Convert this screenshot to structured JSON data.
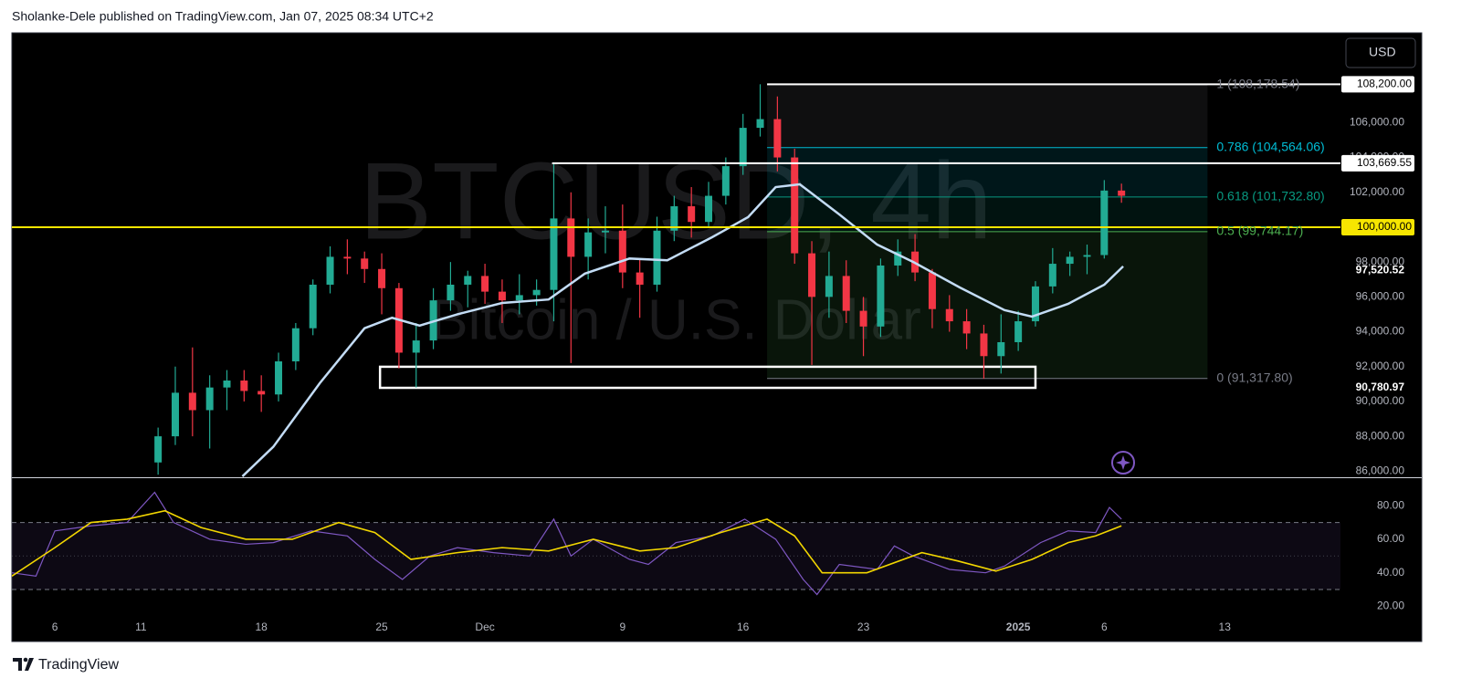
{
  "header": {
    "text": "Sholanke-Dele published on TradingView.com, Jan 07, 2025 08:34 UTC+2"
  },
  "footer": {
    "brand": "TradingView"
  },
  "currency_button": "USD",
  "chart_data": [
    {
      "type": "candlestick",
      "watermark_title": "BTCUSD, 4h",
      "watermark_subtitle": "Bitcoin / U.S. Dollar",
      "up_color": "#22ab94",
      "down_color": "#f23645",
      "ylim": [
        85650,
        111150
      ],
      "yticks": [
        {
          "value": 86000,
          "label": "86,000.00"
        },
        {
          "value": 88000,
          "label": "88,000.00"
        },
        {
          "value": 90000,
          "label": "90,000.00"
        },
        {
          "value": 92000,
          "label": "92,000.00"
        },
        {
          "value": 94000,
          "label": "94,000.00"
        },
        {
          "value": 96000,
          "label": "96,000.00"
        },
        {
          "value": 98000,
          "label": "98,000.00"
        },
        {
          "value": 100000,
          "label": "100,000.00"
        },
        {
          "value": 102000,
          "label": "102,000.00"
        },
        {
          "value": 104000,
          "label": "104,000.00"
        },
        {
          "value": 106000,
          "label": "106,000.00"
        }
      ],
      "x": [
        11,
        12,
        13,
        14,
        15,
        16,
        17,
        18,
        19,
        20,
        21,
        22,
        23,
        24,
        25,
        26,
        27,
        28,
        29,
        30,
        31,
        32,
        33,
        34,
        35,
        36,
        37,
        38,
        39,
        40,
        41,
        42,
        43,
        44,
        45,
        46,
        47,
        48,
        49,
        50,
        51,
        52,
        53,
        54,
        55,
        56,
        57,
        58,
        59,
        60,
        61,
        62,
        63,
        64,
        65,
        66,
        67
      ],
      "open": [
        86500,
        88000,
        90500,
        89500,
        90800,
        91200,
        90600,
        90400,
        92300,
        94200,
        96700,
        98300,
        98200,
        97600,
        96500,
        92800,
        93500,
        95800,
        96700,
        97200,
        96300,
        95800,
        96100,
        96400,
        100500,
        98300,
        99700,
        99800,
        97400,
        96700,
        99800,
        101200,
        100300,
        101800,
        103500,
        105700,
        106200,
        104000,
        98500,
        96000,
        97200,
        95200,
        94300,
        97800,
        98600,
        97400,
        95300,
        94600,
        93900,
        92600,
        93400,
        94600,
        96600,
        97900,
        98300,
        98400,
        102100
      ],
      "high": [
        88500,
        92000,
        93100,
        91500,
        91800,
        91800,
        91500,
        92800,
        94500,
        97000,
        98900,
        99300,
        98600,
        98500,
        96800,
        94500,
        96500,
        98000,
        97500,
        97900,
        97000,
        97300,
        97000,
        103700,
        102000,
        100500,
        101200,
        101300,
        98200,
        100600,
        101800,
        102300,
        102600,
        104000,
        106500,
        108200,
        107500,
        104500,
        99200,
        98600,
        98100,
        96000,
        98200,
        99300,
        99600,
        97600,
        96100,
        95300,
        94400,
        95000,
        95200,
        96900,
        98800,
        98600,
        99000,
        102700,
        102500
      ],
      "low": [
        85800,
        87500,
        88000,
        87300,
        89500,
        90000,
        89400,
        90000,
        91800,
        93800,
        96200,
        97300,
        96800,
        95000,
        91900,
        90800,
        93000,
        95200,
        95400,
        95600,
        94500,
        95000,
        95500,
        94600,
        92200,
        97000,
        98500,
        96500,
        94800,
        96300,
        99200,
        99400,
        100000,
        101300,
        103000,
        105200,
        103200,
        97900,
        92100,
        94800,
        94500,
        92600,
        93700,
        97200,
        96900,
        94200,
        94000,
        93000,
        91300,
        91600,
        92900,
        94300,
        96200,
        97200,
        97300,
        98200,
        101400
      ],
      "close": [
        88000,
        90500,
        89500,
        90800,
        91200,
        90600,
        90400,
        92300,
        94200,
        96700,
        98300,
        98200,
        97600,
        96500,
        92800,
        93500,
        95800,
        96700,
        97200,
        96300,
        95800,
        96100,
        96400,
        100500,
        98300,
        99700,
        99800,
        97400,
        96700,
        99800,
        101200,
        100300,
        101800,
        103500,
        105700,
        106200,
        104000,
        98500,
        96000,
        97200,
        95200,
        94300,
        97800,
        98600,
        97400,
        95300,
        94600,
        93900,
        92600,
        93400,
        94600,
        96600,
        97900,
        98300,
        98400,
        102100,
        101800
      ],
      "ma": {
        "color": "#c3dcf5",
        "x": [
          15.9,
          17.7,
          20.4,
          23.0,
          24.6,
          26.2,
          28.4,
          31.0,
          33.7,
          35.8,
          38.4,
          40.6,
          43.2,
          45.3,
          46.9,
          48.3,
          50.6,
          52.8,
          54.9,
          57.6,
          60.2,
          61.8,
          63.9,
          66.0,
          67.1
        ],
        "values": [
          85700,
          87400,
          91050,
          94200,
          94800,
          94350,
          95000,
          95650,
          95850,
          97330,
          98200,
          98100,
          99420,
          100580,
          102300,
          102460,
          100730,
          99000,
          98000,
          96540,
          95240,
          94870,
          95600,
          96700,
          97750
        ]
      },
      "fib": {
        "x": [
          46.4,
          72.0
        ],
        "levels": [
          {
            "value": 108178.54,
            "label": "1 (108,178.54)",
            "color": "#787b86"
          },
          {
            "value": 104564.06,
            "label": "0.786 (104,564.06)",
            "color": "#00bcd4"
          },
          {
            "value": 101732.8,
            "label": "0.618 (101,732.80)",
            "color": "#089981"
          },
          {
            "value": 99744.17,
            "label": "0.5 (99,744.17)",
            "color": "#4caf50"
          },
          {
            "value": 91317.8,
            "label": "0 (91,317.80)",
            "color": "#787b86"
          }
        ]
      },
      "hlines": [
        {
          "value": 108200,
          "label": "108,200.00",
          "color": "#ffffff",
          "x_start": 46.4
        },
        {
          "value": 103669.55,
          "label": "103,669.55",
          "color": "#ffffff",
          "x_start": 33.9
        },
        {
          "value": 100000,
          "label": "100,000.00",
          "color": "#f7e600"
        }
      ],
      "price_labels": [
        {
          "value": 97520.52,
          "label": "97,520.52"
        },
        {
          "value": 90780.97,
          "label": "90,780.97"
        }
      ],
      "zones": [
        {
          "x": [
            23.9,
            62.0
          ],
          "y": [
            90780.97,
            91990
          ]
        }
      ]
    },
    {
      "type": "line",
      "ylim": [
        11.5,
        97
      ],
      "yticks": [
        {
          "value": 20,
          "label": "20.00"
        },
        {
          "value": 40,
          "label": "40.00"
        },
        {
          "value": 60,
          "label": "60.00"
        },
        {
          "value": 80,
          "label": "80.00"
        }
      ],
      "upper_band": 70,
      "middle_band": 50,
      "lower_band": 30,
      "xlim": [
        2.5,
        79.73
      ],
      "xticks": [
        {
          "value": 5,
          "label": "6"
        },
        {
          "value": 10,
          "label": "11"
        },
        {
          "value": 17,
          "label": "18"
        },
        {
          "value": 24,
          "label": "25"
        },
        {
          "value": 30,
          "label": "Dec"
        },
        {
          "value": 38,
          "label": "9"
        },
        {
          "value": 45,
          "label": "16"
        },
        {
          "value": 52,
          "label": "23"
        },
        {
          "value": 61,
          "label": "2025"
        },
        {
          "value": 66,
          "label": "6"
        },
        {
          "value": 73,
          "label": "13"
        }
      ],
      "series": [
        {
          "color": "#7e57c2",
          "x": [
            2.5,
            3.9,
            5,
            7.1,
            9.2,
            10.8,
            11.9,
            14.0,
            16.1,
            17.7,
            19.9,
            22.0,
            23.6,
            25.2,
            26.8,
            28.4,
            30.5,
            32.6,
            34.0,
            35.0,
            36.3,
            38.4,
            39.5,
            41.1,
            43.2,
            45.1,
            46.9,
            48.5,
            49.3,
            50.6,
            52.8,
            53.8,
            54.9,
            57.0,
            59.1,
            60.2,
            62.3,
            63.9,
            65.5,
            66.3,
            67.0
          ],
          "values": [
            40,
            38,
            65,
            68,
            70,
            88,
            70,
            60,
            57,
            58,
            65,
            62,
            48,
            36,
            50,
            55,
            52,
            50,
            72,
            50,
            60,
            48,
            45,
            58,
            62,
            72,
            60,
            36,
            27,
            45,
            42,
            56,
            50,
            42,
            40,
            44,
            58,
            65,
            64,
            79,
            72
          ]
        },
        {
          "color": "#f2d600",
          "x": [
            2.5,
            5,
            7.1,
            9.2,
            11.4,
            13.5,
            16.1,
            18.8,
            21.5,
            23.6,
            25.7,
            28.4,
            31.0,
            33.7,
            36.3,
            39.0,
            41.1,
            43.7,
            46.4,
            48.0,
            49.6,
            52.2,
            55.4,
            57.5,
            59.7,
            61.8,
            63.9,
            65.5,
            67.0
          ],
          "values": [
            38,
            55,
            70,
            72,
            77,
            67,
            60,
            60,
            70,
            64,
            48,
            52,
            55,
            53,
            60,
            53,
            55,
            64,
            72,
            62,
            40,
            40,
            52,
            47,
            41,
            48,
            58,
            62,
            68
          ]
        }
      ]
    }
  ]
}
